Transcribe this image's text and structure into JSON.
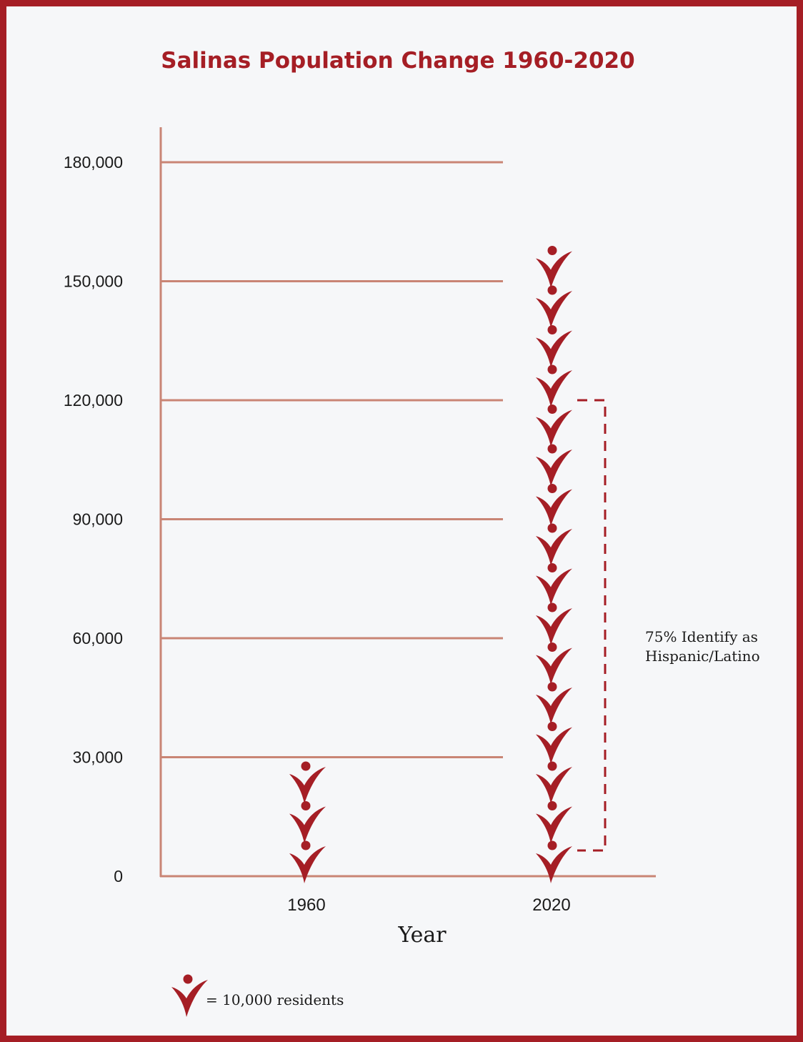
{
  "chart_data": {
    "type": "bar",
    "title": "Salinas Population Change 1960-2020",
    "xlabel": "Year",
    "ylabel": "",
    "categories": [
      "1960",
      "2020"
    ],
    "values": [
      30000,
      160000
    ],
    "icon_unit_value": 10000,
    "icon_counts": [
      3,
      16
    ],
    "ylim": [
      0,
      180000
    ],
    "yticks": [
      0,
      30000,
      60000,
      90000,
      120000,
      150000,
      180000
    ],
    "ytick_labels": [
      "0",
      "30,000",
      "60,000",
      "90,000",
      "120,000",
      "150,000",
      "180,000"
    ],
    "grid": true,
    "annotation": {
      "text_line1": "75% Identify as",
      "text_line2": "Hispanic/Latino",
      "applies_to": "2020",
      "from_value": 0,
      "to_value": 120000
    },
    "legend": {
      "text": "= 10,000 residents",
      "placement": "bottom-left",
      "icon": "person-icon"
    },
    "colors": {
      "frame": "#a51e25",
      "title": "#a51e25",
      "icon": "#a51e25",
      "bracket": "#a51e25",
      "axis": "#c98575",
      "grid": "#c98575",
      "background": "#f6f7f9",
      "text": "#1a1a1a"
    }
  }
}
